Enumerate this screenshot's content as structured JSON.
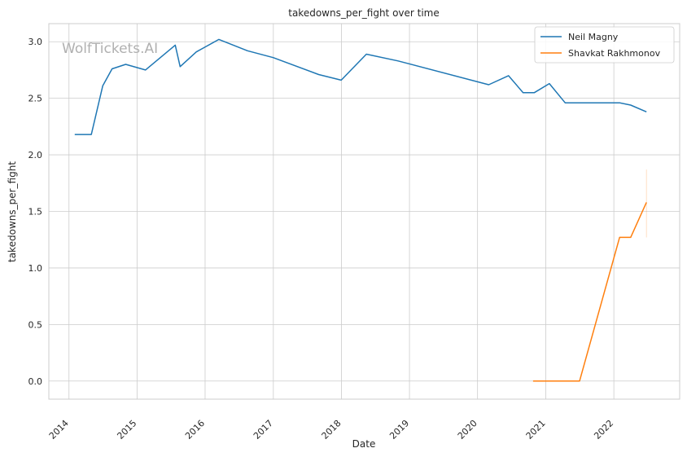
{
  "chart_data": {
    "type": "line",
    "title": "takedowns_per_fight over time",
    "xlabel": "Date",
    "ylabel": "takedowns_per_fight",
    "watermark": "WolfTickets.AI",
    "xlim": [
      "2013-09-15",
      "2022-12-20"
    ],
    "ylim": [
      -0.16,
      3.16
    ],
    "x_ticks": [
      "2014",
      "2015",
      "2016",
      "2017",
      "2018",
      "2019",
      "2020",
      "2021",
      "2022"
    ],
    "y_ticks": [
      "0.0",
      "0.5",
      "1.0",
      "1.5",
      "2.0",
      "2.5",
      "3.0"
    ],
    "grid": true,
    "legend_position": "top-right",
    "series": [
      {
        "name": "Neil Magny",
        "color": "#1f77b4",
        "points": [
          [
            "2014-02-01",
            2.18
          ],
          [
            "2014-05-01",
            2.18
          ],
          [
            "2014-07-01",
            2.61
          ],
          [
            "2014-08-20",
            2.76
          ],
          [
            "2014-11-01",
            2.8
          ],
          [
            "2015-02-15",
            2.75
          ],
          [
            "2015-07-25",
            2.97
          ],
          [
            "2015-08-20",
            2.78
          ],
          [
            "2015-11-15",
            2.91
          ],
          [
            "2016-03-15",
            3.02
          ],
          [
            "2016-08-15",
            2.92
          ],
          [
            "2016-12-31",
            2.86
          ],
          [
            "2017-09-01",
            2.71
          ],
          [
            "2017-12-31",
            2.66
          ],
          [
            "2018-05-15",
            2.89
          ],
          [
            "2018-11-01",
            2.83
          ],
          [
            "2020-03-01",
            2.62
          ],
          [
            "2020-06-15",
            2.7
          ],
          [
            "2020-09-01",
            2.55
          ],
          [
            "2020-11-01",
            2.55
          ],
          [
            "2021-01-20",
            2.63
          ],
          [
            "2021-04-15",
            2.46
          ],
          [
            "2022-02-01",
            2.46
          ],
          [
            "2022-04-01",
            2.44
          ],
          [
            "2022-06-25",
            2.38
          ]
        ]
      },
      {
        "name": "Shavkat Rakhmonov",
        "color": "#ff7f0e",
        "points": [
          [
            "2020-10-25",
            0.0
          ],
          [
            "2021-07-01",
            0.0
          ],
          [
            "2022-02-01",
            1.27
          ],
          [
            "2022-04-01",
            1.27
          ],
          [
            "2022-06-25",
            1.58
          ]
        ],
        "error_bar": {
          "x": "2022-06-25",
          "low": 1.27,
          "high": 1.87
        }
      }
    ]
  }
}
